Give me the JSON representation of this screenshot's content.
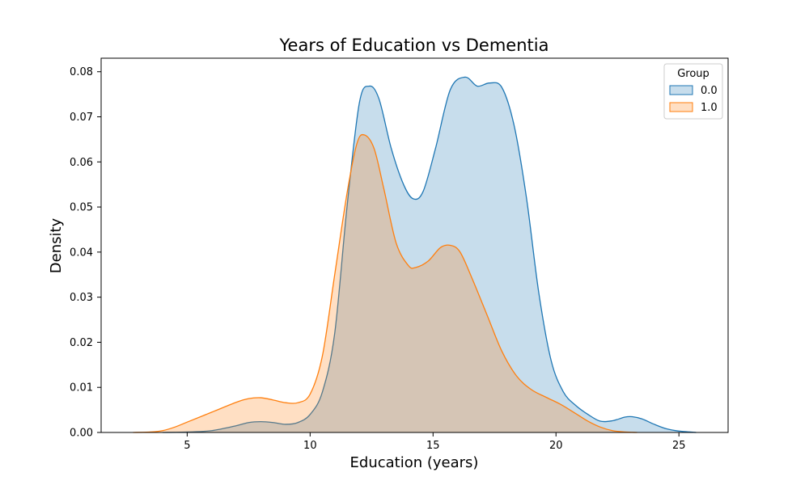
{
  "chart_data": {
    "type": "area",
    "title": "Years of Education vs Dementia",
    "xlabel": "Education (years)",
    "ylabel": "Density",
    "xlim": [
      1.5,
      27.0
    ],
    "ylim": [
      0,
      0.083
    ],
    "x_ticks": [
      5,
      10,
      15,
      20,
      25
    ],
    "y_ticks": [
      0.0,
      0.01,
      0.02,
      0.03,
      0.04,
      0.05,
      0.06,
      0.07,
      0.08
    ],
    "x_tick_labels": [
      "5",
      "10",
      "15",
      "20",
      "25"
    ],
    "y_tick_labels": [
      "0.00",
      "0.01",
      "0.02",
      "0.03",
      "0.04",
      "0.05",
      "0.06",
      "0.07",
      "0.08"
    ],
    "grid": false,
    "legend": {
      "title": "Group",
      "placement": "top-right"
    },
    "series": [
      {
        "name": "0.0",
        "line_color": "#1f77b4",
        "fill_color": "rgba(31,119,180,0.25)",
        "points": [
          [
            4.0,
            0.0
          ],
          [
            5.0,
            0.0001
          ],
          [
            6.0,
            0.0004
          ],
          [
            7.0,
            0.0015
          ],
          [
            7.5,
            0.0022
          ],
          [
            8.0,
            0.0024
          ],
          [
            8.5,
            0.0022
          ],
          [
            9.0,
            0.0018
          ],
          [
            9.5,
            0.0022
          ],
          [
            10.0,
            0.004
          ],
          [
            10.5,
            0.009
          ],
          [
            11.0,
            0.022
          ],
          [
            11.5,
            0.05
          ],
          [
            12.0,
            0.073
          ],
          [
            12.4,
            0.0768
          ],
          [
            12.8,
            0.074
          ],
          [
            13.3,
            0.063
          ],
          [
            13.8,
            0.055
          ],
          [
            14.2,
            0.0518
          ],
          [
            14.6,
            0.0535
          ],
          [
            15.1,
            0.063
          ],
          [
            15.7,
            0.076
          ],
          [
            16.3,
            0.0788
          ],
          [
            16.8,
            0.0768
          ],
          [
            17.3,
            0.0775
          ],
          [
            17.8,
            0.0765
          ],
          [
            18.3,
            0.068
          ],
          [
            18.8,
            0.052
          ],
          [
            19.3,
            0.031
          ],
          [
            19.8,
            0.016
          ],
          [
            20.3,
            0.009
          ],
          [
            20.8,
            0.006
          ],
          [
            21.3,
            0.004
          ],
          [
            21.8,
            0.0025
          ],
          [
            22.3,
            0.0026
          ],
          [
            22.8,
            0.0034
          ],
          [
            23.1,
            0.0035
          ],
          [
            23.5,
            0.003
          ],
          [
            24.0,
            0.0018
          ],
          [
            24.5,
            0.0008
          ],
          [
            25.0,
            0.0003
          ],
          [
            25.7,
            0.0
          ]
        ]
      },
      {
        "name": "1.0",
        "line_color": "#ff7f0e",
        "fill_color": "rgba(255,127,14,0.25)",
        "points": [
          [
            2.8,
            0.0
          ],
          [
            3.5,
            0.0001
          ],
          [
            4.0,
            0.0004
          ],
          [
            4.5,
            0.0012
          ],
          [
            5.0,
            0.0023
          ],
          [
            6.0,
            0.0045
          ],
          [
            7.0,
            0.0067
          ],
          [
            7.5,
            0.0075
          ],
          [
            8.0,
            0.0077
          ],
          [
            8.5,
            0.0072
          ],
          [
            9.0,
            0.0066
          ],
          [
            9.5,
            0.0066
          ],
          [
            10.0,
            0.0085
          ],
          [
            10.5,
            0.017
          ],
          [
            11.0,
            0.035
          ],
          [
            11.5,
            0.053
          ],
          [
            11.9,
            0.064
          ],
          [
            12.2,
            0.066
          ],
          [
            12.6,
            0.063
          ],
          [
            13.0,
            0.054
          ],
          [
            13.5,
            0.042
          ],
          [
            14.0,
            0.037
          ],
          [
            14.3,
            0.0366
          ],
          [
            14.8,
            0.038
          ],
          [
            15.3,
            0.041
          ],
          [
            15.7,
            0.0415
          ],
          [
            16.1,
            0.04
          ],
          [
            16.6,
            0.034
          ],
          [
            17.2,
            0.026
          ],
          [
            17.8,
            0.018
          ],
          [
            18.4,
            0.0125
          ],
          [
            19.0,
            0.0095
          ],
          [
            19.6,
            0.0078
          ],
          [
            20.2,
            0.0062
          ],
          [
            20.8,
            0.0042
          ],
          [
            21.3,
            0.0025
          ],
          [
            21.8,
            0.0012
          ],
          [
            22.3,
            0.0004
          ],
          [
            22.8,
            0.0001
          ],
          [
            23.3,
            0.0
          ]
        ]
      }
    ]
  }
}
